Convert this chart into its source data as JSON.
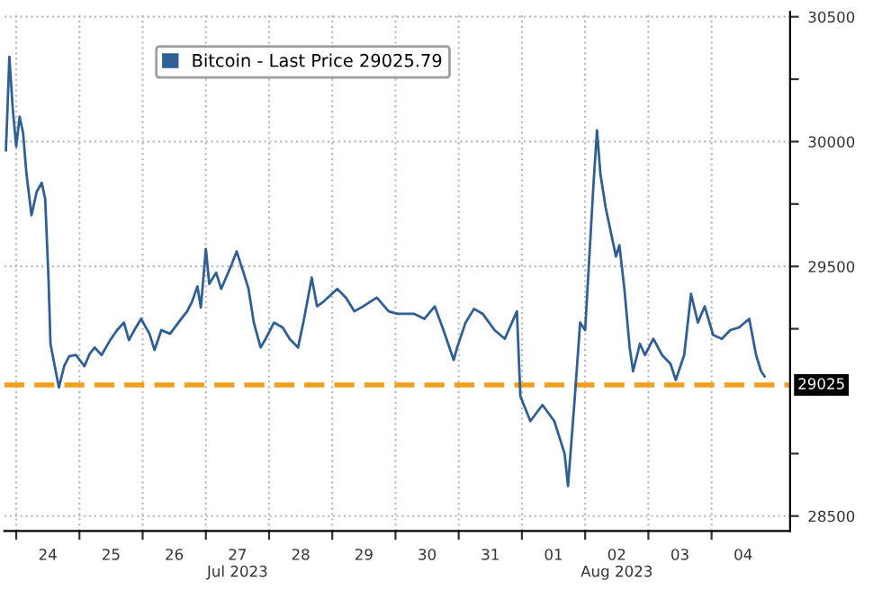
{
  "chart_data": {
    "type": "line",
    "series": [
      {
        "name": "Bitcoin - Last Price 29025.79",
        "color": "#2f5f95",
        "x": [
          "2023-07-23T20:06",
          "2023-07-23T20:48",
          "2023-07-23T21:24",
          "2023-07-23T22:42",
          "2023-07-24T00:00",
          "2023-07-24T01:18",
          "2023-07-24T02:36",
          "2023-07-24T03:54",
          "2023-07-24T05:48",
          "2023-07-24T07:48",
          "2023-07-24T09:42",
          "2023-07-24T11:00",
          "2023-07-24T12:18",
          "2023-07-24T13:00",
          "2023-07-24T16:12",
          "2023-07-24T18:12",
          "2023-07-24T20:06",
          "2023-07-24T22:42",
          "2023-07-25T01:54",
          "2023-07-25T03:54",
          "2023-07-25T05:48",
          "2023-07-25T08:24",
          "2023-07-25T11:42",
          "2023-07-25T14:18",
          "2023-07-25T16:54",
          "2023-07-25T18:48",
          "2023-07-25T21:24",
          "2023-07-25T23:24",
          "2023-07-26T02:36",
          "2023-07-26T04:30",
          "2023-07-26T07:06",
          "2023-07-26T10:24",
          "2023-07-26T13:36",
          "2023-07-26T16:54",
          "2023-07-26T18:48",
          "2023-07-26T20:48",
          "2023-07-26T22:06",
          "2023-07-27T00:00",
          "2023-07-27T01:18",
          "2023-07-27T03:54",
          "2023-07-27T05:48",
          "2023-07-27T09:42",
          "2023-07-27T11:42",
          "2023-07-27T14:18",
          "2023-07-27T16:12",
          "2023-07-27T18:12",
          "2023-07-27T20:48",
          "2023-07-27T22:42",
          "2023-07-28T01:54",
          "2023-07-28T05:12",
          "2023-07-28T07:48",
          "2023-07-28T11:00",
          "2023-07-28T13:00",
          "2023-07-28T16:12",
          "2023-07-28T18:12",
          "2023-07-28T20:48",
          "2023-07-29T01:54",
          "2023-07-29T05:12",
          "2023-07-29T08:24",
          "2023-07-29T11:42",
          "2023-07-29T16:54",
          "2023-07-29T21:24",
          "2023-07-30T00:36",
          "2023-07-30T07:06",
          "2023-07-30T11:00",
          "2023-07-30T14:54",
          "2023-07-30T18:12",
          "2023-07-30T22:06",
          "2023-07-30T23:24",
          "2023-07-31T02:36",
          "2023-07-31T05:48",
          "2023-07-31T09:06",
          "2023-07-31T13:36",
          "2023-07-31T17:30",
          "2023-07-31T22:06",
          "2023-07-31T23:24",
          "2023-08-01T03:12",
          "2023-08-01T07:48",
          "2023-08-01T12:18",
          "2023-08-01T16:12",
          "2023-08-01T17:30",
          "2023-08-01T20:06",
          "2023-08-01T22:06",
          "2023-08-02T00:00",
          "2023-08-02T03:12",
          "2023-08-02T04:30",
          "2023-08-02T05:48",
          "2023-08-02T07:48",
          "2023-08-02T09:42",
          "2023-08-02T11:42",
          "2023-08-02T13:00",
          "2023-08-02T14:54",
          "2023-08-02T16:54",
          "2023-08-02T18:12",
          "2023-08-02T20:48",
          "2023-08-02T22:42",
          "2023-08-03T01:54",
          "2023-08-03T05:12",
          "2023-08-03T08:24",
          "2023-08-03T10:24",
          "2023-08-03T13:36",
          "2023-08-03T16:12",
          "2023-08-03T18:48",
          "2023-08-03T21:24",
          "2023-08-04T00:36",
          "2023-08-04T03:54",
          "2023-08-04T07:06",
          "2023-08-04T10:24",
          "2023-08-04T14:18",
          "2023-08-04T16:54",
          "2023-08-04T18:48",
          "2023-08-04T20:06"
        ],
        "values": [
          29965,
          30165,
          30340,
          30130,
          29980,
          30100,
          30035,
          29870,
          29705,
          29800,
          29835,
          29770,
          29440,
          29190,
          29015,
          29100,
          29140,
          29145,
          29100,
          29150,
          29175,
          29145,
          29205,
          29245,
          29275,
          29205,
          29255,
          29290,
          29230,
          29165,
          29245,
          29230,
          29275,
          29320,
          29360,
          29420,
          29335,
          29570,
          29430,
          29475,
          29410,
          29505,
          29560,
          29475,
          29410,
          29275,
          29175,
          29210,
          29275,
          29255,
          29210,
          29175,
          29275,
          29455,
          29340,
          29360,
          29410,
          29375,
          29320,
          29340,
          29375,
          29320,
          29310,
          29310,
          29290,
          29340,
          29245,
          29125,
          29175,
          29275,
          29330,
          29310,
          29245,
          29210,
          29320,
          28980,
          28880,
          28945,
          28880,
          28750,
          28620,
          28980,
          29275,
          29245,
          29835,
          30045,
          29870,
          29735,
          29640,
          29540,
          29585,
          29410,
          29175,
          29080,
          29190,
          29145,
          29210,
          29145,
          29110,
          29045,
          29145,
          29390,
          29275,
          29340,
          29225,
          29210,
          29245,
          29255,
          29290,
          29145,
          29080,
          29060
        ]
      }
    ],
    "xlim": [
      "2023-07-23T19:30",
      "2023-08-05T05:48"
    ],
    "xticks": [
      {
        "value": "2023-07-24T00:00",
        "label": null
      },
      {
        "value": "2023-07-24T12:00",
        "label": "24"
      },
      {
        "value": "2023-07-25T00:00",
        "label": null
      },
      {
        "value": "2023-07-25T12:00",
        "label": "25"
      },
      {
        "value": "2023-07-26T00:00",
        "label": null
      },
      {
        "value": "2023-07-26T12:00",
        "label": "26"
      },
      {
        "value": "2023-07-27T00:00",
        "label": null
      },
      {
        "value": "2023-07-27T12:00",
        "label": "27\nJul 2023"
      },
      {
        "value": "2023-07-28T00:00",
        "label": null
      },
      {
        "value": "2023-07-28T12:00",
        "label": "28"
      },
      {
        "value": "2023-07-29T00:00",
        "label": null
      },
      {
        "value": "2023-07-29T12:00",
        "label": "29"
      },
      {
        "value": "2023-07-30T00:00",
        "label": null
      },
      {
        "value": "2023-07-30T12:00",
        "label": "30"
      },
      {
        "value": "2023-07-31T00:00",
        "label": null
      },
      {
        "value": "2023-07-31T12:00",
        "label": "31"
      },
      {
        "value": "2023-08-01T00:00",
        "label": null
      },
      {
        "value": "2023-08-01T12:00",
        "label": "01"
      },
      {
        "value": "2023-08-02T00:00",
        "label": null
      },
      {
        "value": "2023-08-02T12:00",
        "label": "02\nAug 2023"
      },
      {
        "value": "2023-08-03T00:00",
        "label": null
      },
      {
        "value": "2023-08-03T12:00",
        "label": "03"
      },
      {
        "value": "2023-08-04T00:00",
        "label": null
      },
      {
        "value": "2023-08-04T12:00",
        "label": "04"
      }
    ],
    "ylim": [
      28440,
      30520
    ],
    "yticks": [
      28500,
      {
        "value": 28750,
        "label": null
      },
      {
        "value": 29250,
        "label": null
      },
      29500,
      {
        "value": 29750,
        "label": null
      },
      30000,
      {
        "value": 30250,
        "label": null
      },
      30500
    ],
    "ref_lines": [
      {
        "axis": "y",
        "value": 29025,
        "label": "29025",
        "color": "#f0a020",
        "line_style": "dashed"
      }
    ],
    "grid": true,
    "legend": "top"
  }
}
